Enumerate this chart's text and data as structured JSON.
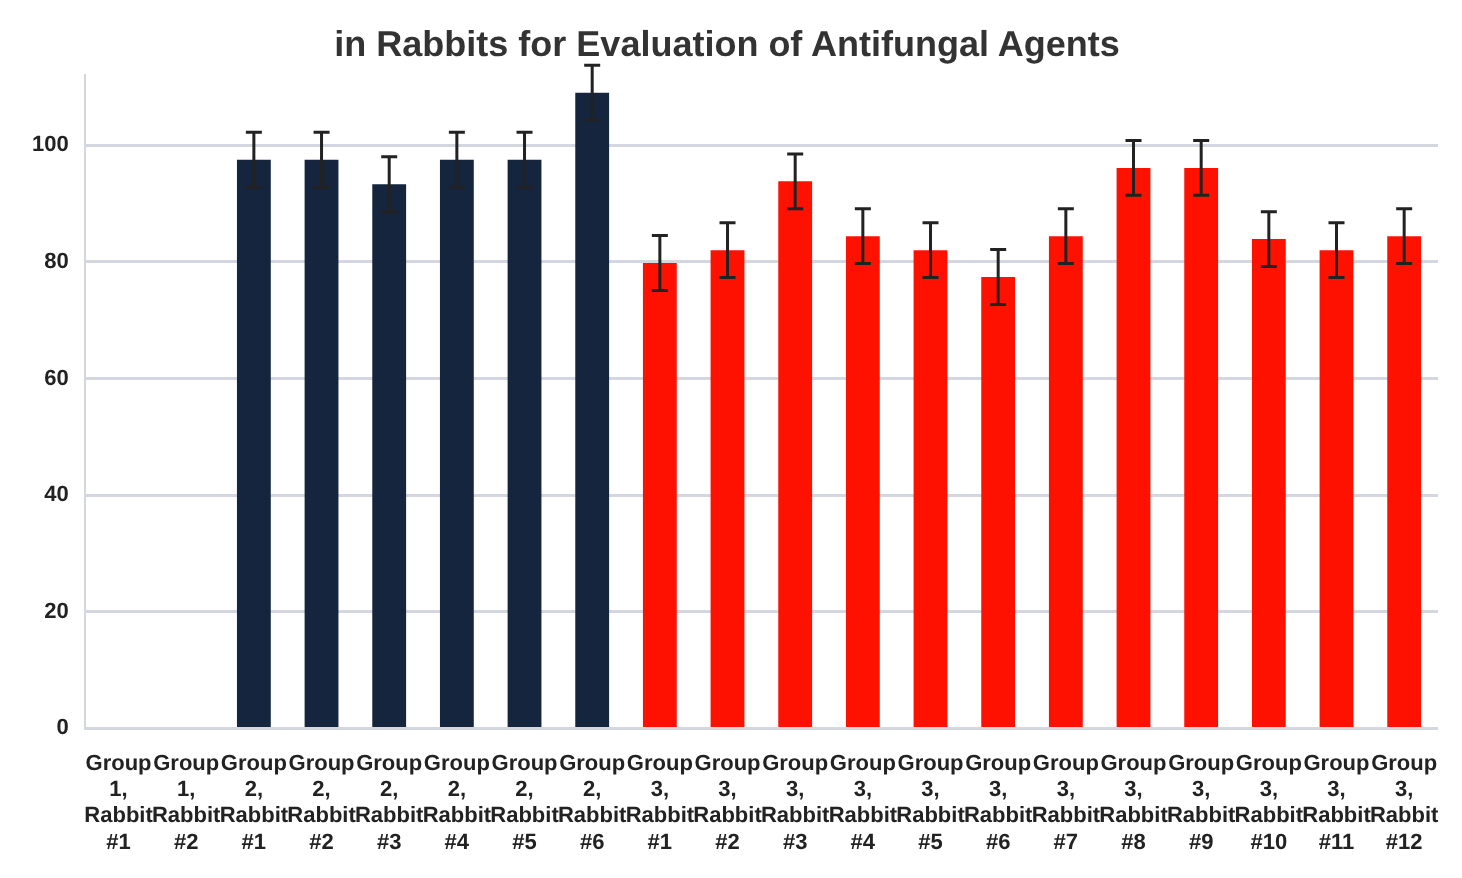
{
  "chart_data": {
    "type": "bar",
    "title": "in Rabbits for Evaluation of Antifungal Agents",
    "categories": [
      "Group 1, Rabbit #1",
      "Group 1, Rabbit #2",
      "Group 2, Rabbit #1",
      "Group 2, Rabbit #2",
      "Group 2, Rabbit #3",
      "Group 2, Rabbit #4",
      "Group 2, Rabbit #5",
      "Group 2, Rabbit #6",
      "Group 3, Rabbit #1",
      "Group 3, Rabbit #2",
      "Group 3, Rabbit #3",
      "Group 3, Rabbit #4",
      "Group 3, Rabbit #5",
      "Group 3, Rabbit #6",
      "Group 3, Rabbit #7",
      "Group 3, Rabbit #8",
      "Group 3, Rabbit #9",
      "Group 3, Rabbit #10",
      "Group 3, Rabbit #11",
      "Group 3, Rabbit #12"
    ],
    "values": [
      0,
      0,
      97.5,
      97.5,
      93.3,
      97.5,
      97.5,
      109,
      79.8,
      82,
      93.8,
      84.4,
      82,
      77.4,
      84.4,
      96.1,
      96.1,
      83.9,
      82,
      84.4
    ],
    "errors": [
      null,
      null,
      4.7,
      4.7,
      4.7,
      4.7,
      4.7,
      4.7,
      4.7,
      4.7,
      4.7,
      4.7,
      4.7,
      4.7,
      4.7,
      4.7,
      4.7,
      4.7,
      4.7,
      4.7
    ],
    "colors": [
      "#14253d",
      "#14253d",
      "#14253d",
      "#14253d",
      "#14253d",
      "#14253d",
      "#14253d",
      "#14253d",
      "#ff1100",
      "#ff1100",
      "#ff1100",
      "#ff1100",
      "#ff1100",
      "#ff1100",
      "#ff1100",
      "#ff1100",
      "#ff1100",
      "#ff1100",
      "#ff1100",
      "#ff1100"
    ],
    "ylim": [
      0,
      112
    ],
    "yticks": [
      0,
      20,
      40,
      60,
      80,
      100
    ],
    "grid": "y"
  }
}
